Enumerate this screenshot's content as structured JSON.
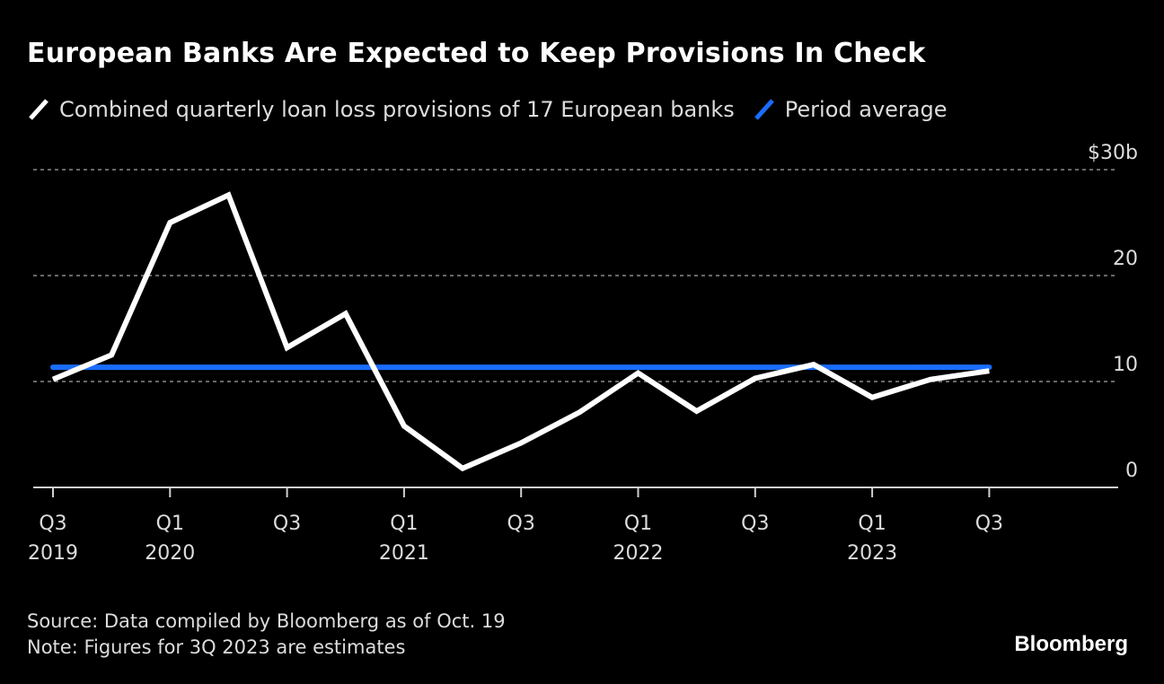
{
  "title": "European Banks Are Expected to Keep Provisions In Check",
  "legend": [
    {
      "label": "Combined quarterly loan loss provisions of 17 European banks",
      "color": "#ffffff",
      "icon": "line-swatch-icon"
    },
    {
      "label": "Period average",
      "color": "#1a6dff",
      "icon": "line-swatch-icon"
    }
  ],
  "footer": {
    "source": "Source: Data compiled by Bloomberg as of Oct. 19",
    "note": "Note: Figures for 3Q 2023 are estimates"
  },
  "brand": "Bloomberg",
  "chart_data": {
    "type": "line",
    "title": "European Banks Are Expected to Keep Provisions In Check",
    "xlabel": "",
    "ylabel": "",
    "y_unit_label": "$30b",
    "ylim": [
      0,
      30
    ],
    "yticks": [
      0,
      10,
      20,
      30
    ],
    "ytick_labels": [
      "0",
      "10",
      "20",
      "$30b"
    ],
    "grid": true,
    "legend_position": "top-left",
    "x": [
      "Q3 2019",
      "Q4 2019",
      "Q1 2020",
      "Q2 2020",
      "Q3 2020",
      "Q4 2020",
      "Q1 2021",
      "Q2 2021",
      "Q3 2021",
      "Q4 2021",
      "Q1 2022",
      "Q2 2022",
      "Q3 2022",
      "Q4 2022",
      "Q1 2023",
      "Q2 2023",
      "Q3 2023"
    ],
    "xtick_labels": [
      {
        "index": 0,
        "line1": "Q3",
        "line2": "2019"
      },
      {
        "index": 2,
        "line1": "Q1",
        "line2": "2020"
      },
      {
        "index": 4,
        "line1": "Q3",
        "line2": ""
      },
      {
        "index": 6,
        "line1": "Q1",
        "line2": "2021"
      },
      {
        "index": 8,
        "line1": "Q3",
        "line2": ""
      },
      {
        "index": 10,
        "line1": "Q1",
        "line2": "2022"
      },
      {
        "index": 12,
        "line1": "Q3",
        "line2": ""
      },
      {
        "index": 14,
        "line1": "Q1",
        "line2": "2023"
      },
      {
        "index": 16,
        "line1": "Q3",
        "line2": ""
      }
    ],
    "series": [
      {
        "name": "Combined quarterly loan loss provisions of 17 European banks",
        "color": "#ffffff",
        "values": [
          10.2,
          12.5,
          25.0,
          27.6,
          13.2,
          16.4,
          5.8,
          1.8,
          4.2,
          7.1,
          10.8,
          7.2,
          10.3,
          11.6,
          8.5,
          10.2,
          11.0
        ]
      },
      {
        "name": "Period average",
        "color": "#1a6dff",
        "values": [
          11.35,
          11.35,
          11.35,
          11.35,
          11.35,
          11.35,
          11.35,
          11.35,
          11.35,
          11.35,
          11.35,
          11.35,
          11.35,
          11.35,
          11.35,
          11.35,
          11.35
        ]
      }
    ]
  }
}
